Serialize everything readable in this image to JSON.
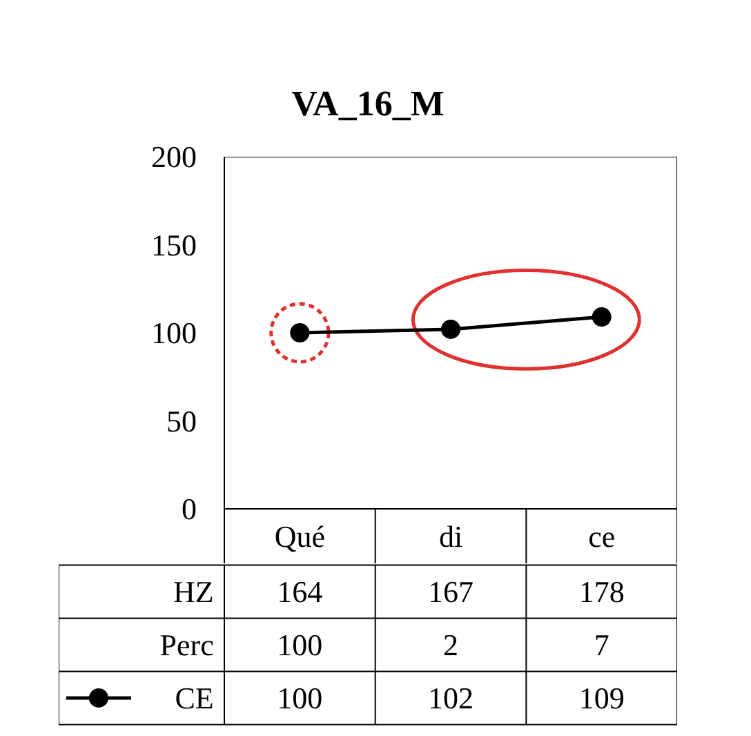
{
  "chart_data": {
    "type": "line",
    "title": "VA_16_M",
    "categories": [
      "Qué",
      "di",
      "ce"
    ],
    "series": [
      {
        "name": "CE",
        "color": "#000000",
        "values": [
          100,
          102,
          109
        ]
      }
    ],
    "annotations": [
      "HZ",
      "164",
      "167",
      "178",
      "Perc",
      "100",
      "2",
      "7"
    ],
    "ylim": [
      0,
      200
    ],
    "yticks": [
      0,
      50,
      100,
      150,
      200
    ],
    "data_labels": true,
    "marker": "circle",
    "line_style": "solid",
    "grid": false
  }
}
